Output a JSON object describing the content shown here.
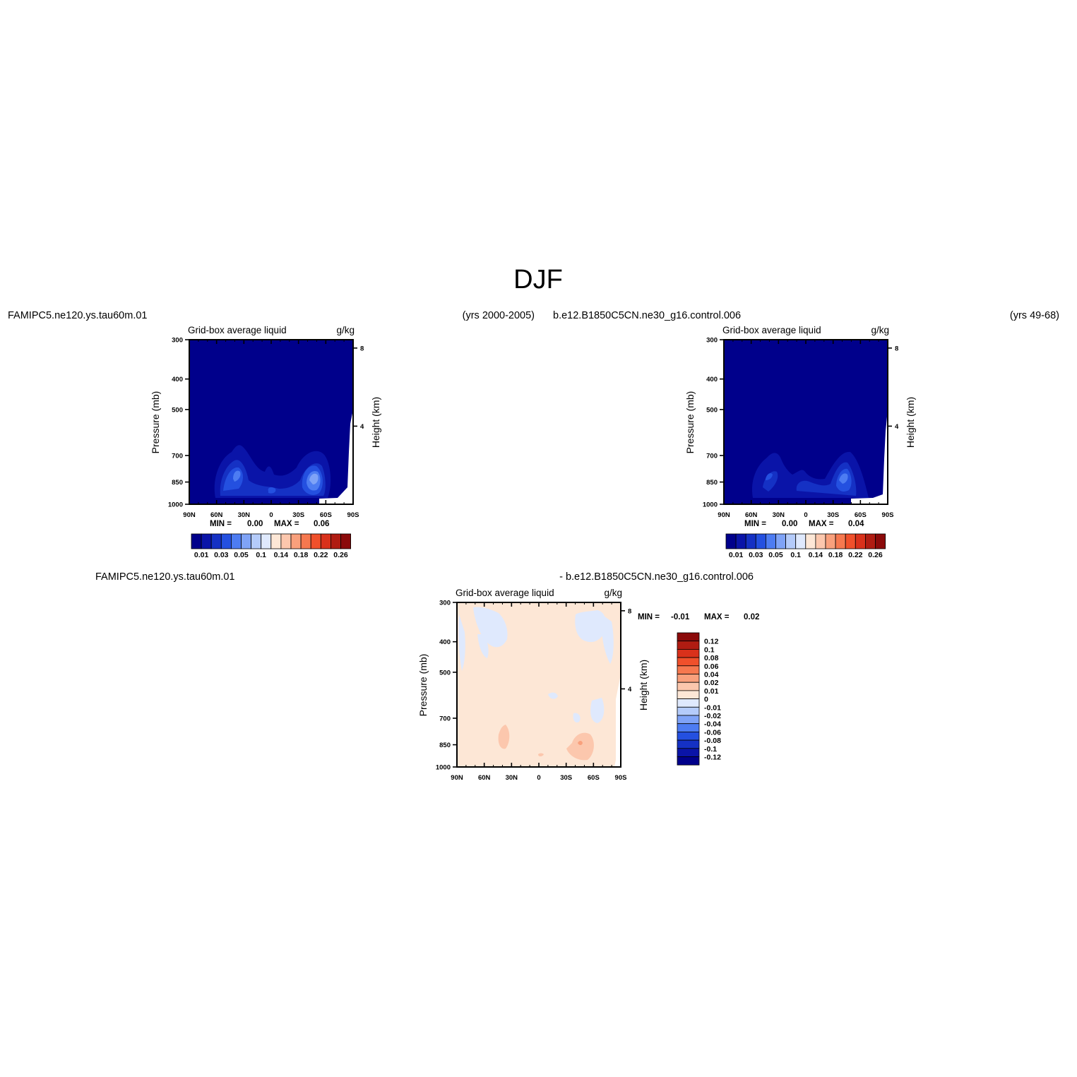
{
  "figure_title": "DJF",
  "colors": {
    "full_field_palette": [
      "#00008b",
      "#0a14a8",
      "#1531c4",
      "#2450e0",
      "#4d7cf2",
      "#7fa3f7",
      "#b4cbfa",
      "#dfe9fd",
      "#fde7d6",
      "#fcc7ad",
      "#f9a07c",
      "#f6784f",
      "#f0502b",
      "#d9311b",
      "#b01c12",
      "#8b0a0a"
    ],
    "difference_palette": [
      "#00008b",
      "#0a14a8",
      "#1531c4",
      "#2450e0",
      "#4d7cf2",
      "#7fa3f7",
      "#b4cbfa",
      "#dfe9fd",
      "#fde7d6",
      "#fcc7ad",
      "#f9a07c",
      "#f6784f",
      "#f0502b",
      "#d9311b",
      "#b01c12",
      "#8b0a0a"
    ]
  },
  "panels": [
    {
      "case_name": "FAMIPC5.ne120.ys.tau60m.01",
      "years": "(yrs 2000-2005)",
      "title_left": "Grid-box average liquid",
      "title_right": "g/kg",
      "ylabel_left": "Pressure (mb)",
      "ylabel_right": "Height (km)",
      "stat_min_label": "MIN =",
      "stat_min": "0.00",
      "stat_max_label": "MAX =",
      "stat_max": "0.06"
    },
    {
      "case_name": "b.e12.B1850C5CN.ne30_g16.control.006",
      "years": "(yrs 49-68)",
      "title_left": "Grid-box average liquid",
      "title_right": "g/kg",
      "ylabel_left": "Pressure (mb)",
      "ylabel_right": "Height (km)",
      "stat_min_label": "MIN =",
      "stat_min": "0.00",
      "stat_max_label": "MAX =",
      "stat_max": "0.04"
    }
  ],
  "difference": {
    "case_left": "FAMIPC5.ne120.ys.tau60m.01",
    "case_right": "- b.e12.B1850C5CN.ne30_g16.control.006",
    "title_left": "Grid-box average liquid",
    "title_right": "g/kg",
    "ylabel_left": "Pressure (mb)",
    "ylabel_right": "Height (km)",
    "stat_min_label": "MIN =",
    "stat_min": "-0.01",
    "stat_max_label": "MAX =",
    "stat_max": "0.02"
  },
  "chart_data": [
    {
      "type": "heatmap",
      "title": "Grid-box average liquid",
      "units": "g/kg",
      "case": "FAMIPC5.ne120.ys.tau60m.01",
      "xlabel": "",
      "ylabel": "Pressure (mb)",
      "ylabel_right": "Height (km)",
      "x_ticks": [
        "90N",
        "60N",
        "30N",
        "0",
        "30S",
        "60S",
        "90S"
      ],
      "y_ticks": [
        "300",
        "400",
        "500",
        "700",
        "850",
        "1000"
      ],
      "y_right_ticks": [
        "8",
        "4"
      ],
      "y_scale": "log-pressure",
      "levels": [
        0.01,
        0.03,
        0.05,
        0.1,
        0.14,
        0.18,
        0.22,
        0.26
      ],
      "colorbar_labels": [
        "0.01",
        "0.03",
        "0.05",
        "0.1",
        "0.14",
        "0.18",
        "0.22",
        "0.26"
      ],
      "features": [
        {
          "description_value": "background",
          "value": 0.0
        },
        {
          "lat": 35,
          "pressure": 860,
          "value": 0.03
        },
        {
          "lat": 0,
          "pressure": 900,
          "value": 0.02
        },
        {
          "lat": -45,
          "pressure": 880,
          "value": 0.06
        }
      ],
      "min": 0.0,
      "max": 0.06
    },
    {
      "type": "heatmap",
      "title": "Grid-box average liquid",
      "units": "g/kg",
      "case": "b.e12.B1850C5CN.ne30_g16.control.006",
      "xlabel": "",
      "ylabel": "Pressure (mb)",
      "ylabel_right": "Height (km)",
      "x_ticks": [
        "90N",
        "60N",
        "30N",
        "0",
        "30S",
        "60S",
        "90S"
      ],
      "y_ticks": [
        "300",
        "400",
        "500",
        "700",
        "850",
        "1000"
      ],
      "y_right_ticks": [
        "8",
        "4"
      ],
      "y_scale": "log-pressure",
      "levels": [
        0.01,
        0.03,
        0.05,
        0.1,
        0.14,
        0.18,
        0.22,
        0.26
      ],
      "colorbar_labels": [
        "0.01",
        "0.03",
        "0.05",
        "0.1",
        "0.14",
        "0.18",
        "0.22",
        "0.26"
      ],
      "features": [
        {
          "lat": 40,
          "pressure": 870,
          "value": 0.02
        },
        {
          "lat": 0,
          "pressure": 920,
          "value": 0.01
        },
        {
          "lat": -40,
          "pressure": 860,
          "value": 0.04
        }
      ],
      "min": 0.0,
      "max": 0.04
    },
    {
      "type": "heatmap",
      "title": "Grid-box average liquid",
      "units": "g/kg",
      "case": "FAMIPC5.ne120.ys.tau60m.01 - b.e12.B1850C5CN.ne30_g16.control.006",
      "xlabel": "",
      "ylabel": "Pressure (mb)",
      "ylabel_right": "Height (km)",
      "x_ticks": [
        "90N",
        "60N",
        "30N",
        "0",
        "30S",
        "60S",
        "90S"
      ],
      "y_ticks": [
        "300",
        "400",
        "500",
        "700",
        "850",
        "1000"
      ],
      "y_right_ticks": [
        "8",
        "4"
      ],
      "y_scale": "log-pressure",
      "levels": [
        -0.12,
        -0.1,
        -0.08,
        -0.06,
        -0.04,
        -0.02,
        -0.01,
        0,
        0.01,
        0.02,
        0.04,
        0.06,
        0.08,
        0.1,
        0.12
      ],
      "colorbar_labels": [
        "0.12",
        "0.1",
        "0.08",
        "0.06",
        "0.04",
        "0.02",
        "0.01",
        "0",
        "-0.01",
        "-0.02",
        "-0.04",
        "-0.06",
        "-0.08",
        "-0.1",
        "-0.12"
      ],
      "features": [
        {
          "description_value": "background",
          "value": 0.005
        },
        {
          "lat": 35,
          "pressure": 880,
          "value": 0.02
        },
        {
          "lat": -45,
          "pressure": 890,
          "value": 0.02
        },
        {
          "lat": -40,
          "pressure": 420,
          "value": -0.01
        }
      ],
      "min": -0.01,
      "max": 0.02
    }
  ]
}
